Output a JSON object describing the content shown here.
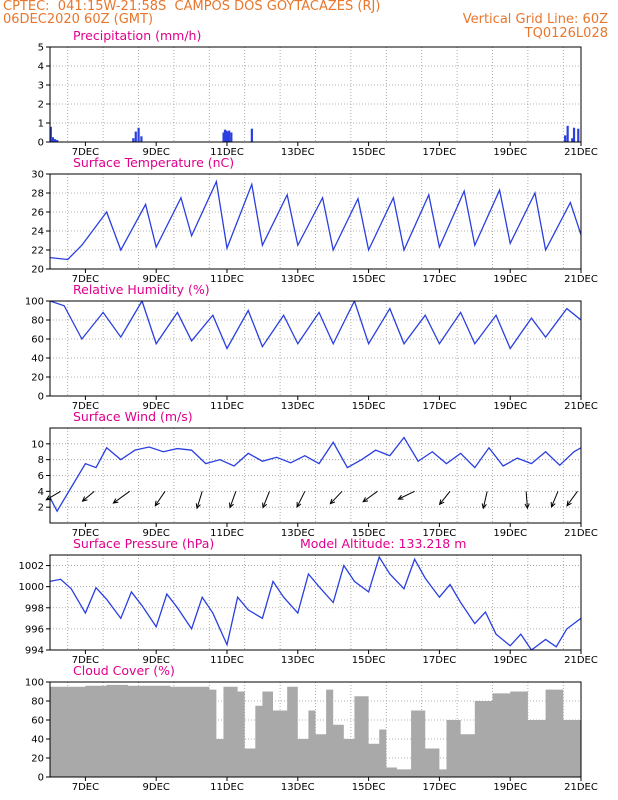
{
  "header": {
    "line1_left": "CPTEC:  041:15W-21:58S  CAMPOS DOS GOYTACAZES (RJ)",
    "line2_left": "06DEC2020 60Z (GMT)",
    "line2_right": "Vertical Grid Line: 60Z",
    "line3_right": "TQ0126L028",
    "text_color": "#e8762c"
  },
  "colors": {
    "title": "#e0008c",
    "line": "#2a3fe0",
    "cloud": "#a9a9a9",
    "grid": "#9a9a9a"
  },
  "x_axis": {
    "start_day": 6.0,
    "end_day": 21.0,
    "tick_days": [
      7,
      9,
      11,
      13,
      15,
      17,
      19,
      21
    ],
    "tick_labels": [
      "7DEC",
      "9DEC",
      "11DEC",
      "13DEC",
      "15DEC",
      "17DEC",
      "19DEC",
      "21DEC"
    ],
    "grid_days": [
      6.5,
      7.5,
      8.5,
      9.5,
      10.5,
      11.5,
      12.5,
      13.5,
      14.5,
      15.5,
      16.5,
      17.5,
      18.5,
      19.5,
      20.5
    ]
  },
  "chart_data": [
    {
      "type": "bar",
      "title": "Precipitation (mm/h)",
      "ylim": [
        0,
        5
      ],
      "yticks": [
        "0",
        "1",
        "2",
        "3",
        "4",
        "5"
      ],
      "x": [
        6.02,
        6.08,
        6.14,
        6.2,
        8.35,
        8.42,
        8.5,
        8.58,
        10.9,
        10.94,
        10.98,
        11.02,
        11.06,
        11.12,
        11.7,
        20.55,
        20.62,
        20.75,
        20.8,
        20.92
      ],
      "values": [
        0.8,
        0.25,
        0.15,
        0.1,
        0.2,
        0.55,
        0.75,
        0.3,
        0.5,
        0.65,
        0.6,
        0.55,
        0.6,
        0.5,
        0.7,
        0.35,
        0.85,
        0.2,
        0.75,
        0.7
      ]
    },
    {
      "type": "line",
      "title": "Surface Temperature (nC)",
      "ylim": [
        20,
        30
      ],
      "yticks": [
        "20",
        "22",
        "24",
        "26",
        "28",
        "30"
      ],
      "x": [
        6.0,
        6.5,
        6.9,
        7.6,
        8.0,
        8.7,
        9.0,
        9.7,
        10.0,
        10.7,
        11.0,
        11.7,
        12.0,
        12.7,
        13.0,
        13.7,
        14.0,
        14.7,
        15.0,
        15.7,
        16.0,
        16.7,
        17.0,
        17.7,
        18.0,
        18.7,
        19.0,
        19.7,
        20.0,
        20.7,
        21.0
      ],
      "values": [
        21.2,
        21.0,
        22.5,
        26.0,
        22.0,
        26.8,
        22.3,
        27.5,
        23.5,
        29.2,
        22.2,
        28.9,
        22.5,
        27.8,
        22.5,
        27.5,
        22.0,
        27.4,
        22.0,
        27.5,
        22.0,
        27.8,
        22.3,
        28.2,
        22.5,
        28.3,
        22.7,
        28.0,
        22.0,
        27.0,
        23.6
      ]
    },
    {
      "type": "line",
      "title": "Relative Humidity (%)",
      "ylim": [
        0,
        100
      ],
      "yticks": [
        "0",
        "20",
        "40",
        "60",
        "80",
        "100"
      ],
      "x": [
        6.0,
        6.4,
        6.9,
        7.5,
        8.0,
        8.6,
        9.0,
        9.6,
        10.0,
        10.6,
        11.0,
        11.6,
        12.0,
        12.6,
        13.0,
        13.6,
        14.0,
        14.6,
        15.0,
        15.6,
        16.0,
        16.6,
        17.0,
        17.6,
        18.0,
        18.6,
        19.0,
        19.6,
        20.0,
        20.6,
        21.0
      ],
      "values": [
        100,
        95,
        60,
        88,
        62,
        100,
        55,
        88,
        58,
        85,
        50,
        90,
        52,
        85,
        55,
        88,
        55,
        100,
        55,
        92,
        55,
        85,
        55,
        88,
        55,
        85,
        50,
        82,
        62,
        92,
        80
      ]
    },
    {
      "type": "line",
      "title": "Surface Wind (m/s)",
      "ylim": [
        0,
        12
      ],
      "yticks": [
        "2",
        "4",
        "6",
        "8",
        "10"
      ],
      "x": [
        6.0,
        6.2,
        6.6,
        7.0,
        7.3,
        7.6,
        8.0,
        8.4,
        8.8,
        9.2,
        9.6,
        10.0,
        10.4,
        10.8,
        11.2,
        11.6,
        12.0,
        12.4,
        12.8,
        13.2,
        13.6,
        14.0,
        14.4,
        14.8,
        15.2,
        15.6,
        16.0,
        16.4,
        16.8,
        17.2,
        17.6,
        18.0,
        18.4,
        18.8,
        19.2,
        19.6,
        20.0,
        20.4,
        20.8,
        21.0
      ],
      "values": [
        3.2,
        1.5,
        4.5,
        7.5,
        7.0,
        9.5,
        8.0,
        9.2,
        9.6,
        9.0,
        9.4,
        9.2,
        7.5,
        8.0,
        7.2,
        8.8,
        7.8,
        8.3,
        7.6,
        8.5,
        7.5,
        10.2,
        7.0,
        8.0,
        9.2,
        8.5,
        10.8,
        7.8,
        9.0,
        7.5,
        8.8,
        7.0,
        9.5,
        7.2,
        8.2,
        7.5,
        9.0,
        7.3,
        9.0,
        9.5
      ],
      "arrows": [
        {
          "x": 6.3,
          "u": -2.2,
          "v": -1.3
        },
        {
          "x": 7.25,
          "u": -1.8,
          "v": -1.5
        },
        {
          "x": 8.25,
          "u": -2.5,
          "v": -1.8
        },
        {
          "x": 9.25,
          "u": -1.5,
          "v": -2.2
        },
        {
          "x": 10.3,
          "u": -0.8,
          "v": -2.6
        },
        {
          "x": 11.25,
          "u": -0.9,
          "v": -2.5
        },
        {
          "x": 12.2,
          "u": -1.0,
          "v": -2.5
        },
        {
          "x": 13.2,
          "u": -1.2,
          "v": -2.4
        },
        {
          "x": 14.25,
          "u": -1.8,
          "v": -1.9
        },
        {
          "x": 15.25,
          "u": -2.2,
          "v": -1.6
        },
        {
          "x": 16.3,
          "u": -2.5,
          "v": -1.2
        },
        {
          "x": 17.3,
          "u": -1.6,
          "v": -2.0
        },
        {
          "x": 18.35,
          "u": -0.6,
          "v": -2.6
        },
        {
          "x": 19.45,
          "u": 0.2,
          "v": -2.6
        },
        {
          "x": 20.35,
          "u": -1.0,
          "v": -2.4
        },
        {
          "x": 20.9,
          "u": -1.6,
          "v": -2.2
        }
      ]
    },
    {
      "type": "line",
      "title": "Surface Pressure (hPa)",
      "subtitle": "Model Altitude: 133.218 m",
      "ylim": [
        994,
        1003
      ],
      "yticks": [
        "994",
        "996",
        "998",
        "1000",
        "1002"
      ],
      "x": [
        6.0,
        6.3,
        6.6,
        7.0,
        7.3,
        7.6,
        8.0,
        8.3,
        8.6,
        9.0,
        9.3,
        9.6,
        10.0,
        10.3,
        10.6,
        11.0,
        11.3,
        11.6,
        12.0,
        12.3,
        12.6,
        13.0,
        13.3,
        13.6,
        14.0,
        14.3,
        14.6,
        15.0,
        15.3,
        15.6,
        16.0,
        16.3,
        16.6,
        17.0,
        17.3,
        17.6,
        18.0,
        18.3,
        18.6,
        19.0,
        19.3,
        19.6,
        20.0,
        20.3,
        20.6,
        21.0
      ],
      "values": [
        1000.5,
        1000.7,
        999.8,
        997.5,
        999.9,
        998.8,
        997.0,
        999.5,
        998.2,
        996.2,
        999.3,
        998.0,
        996.0,
        999.0,
        997.5,
        994.5,
        999.0,
        997.8,
        997.0,
        1000.5,
        999.0,
        997.5,
        1001.2,
        1000.0,
        998.5,
        1002.0,
        1000.5,
        999.5,
        1002.8,
        1001.2,
        999.8,
        1002.6,
        1000.8,
        999.0,
        1000.2,
        998.5,
        996.5,
        997.6,
        995.5,
        994.4,
        995.5,
        994.0,
        995.0,
        994.3,
        996.0,
        997.0
      ]
    },
    {
      "type": "area",
      "title": "Cloud Cover (%)",
      "ylim": [
        0,
        100
      ],
      "yticks": [
        "0",
        "20",
        "40",
        "60",
        "80",
        "100"
      ],
      "x": [
        6.0,
        6.4,
        7.0,
        7.6,
        8.2,
        8.8,
        9.4,
        10.0,
        10.5,
        10.7,
        10.9,
        11.3,
        11.5,
        11.8,
        12.0,
        12.3,
        12.7,
        13.0,
        13.3,
        13.5,
        13.8,
        14.0,
        14.3,
        14.6,
        15.0,
        15.3,
        15.5,
        15.8,
        16.2,
        16.6,
        17.0,
        17.2,
        17.6,
        18.0,
        18.5,
        19.0,
        19.5,
        20.0,
        20.5,
        21.0
      ],
      "values": [
        95,
        95,
        96,
        97,
        96,
        96,
        95,
        95,
        92,
        40,
        95,
        90,
        30,
        75,
        90,
        70,
        95,
        40,
        70,
        45,
        92,
        55,
        40,
        85,
        35,
        50,
        10,
        8,
        70,
        30,
        8,
        60,
        45,
        80,
        88,
        90,
        60,
        92,
        60,
        92
      ]
    }
  ]
}
